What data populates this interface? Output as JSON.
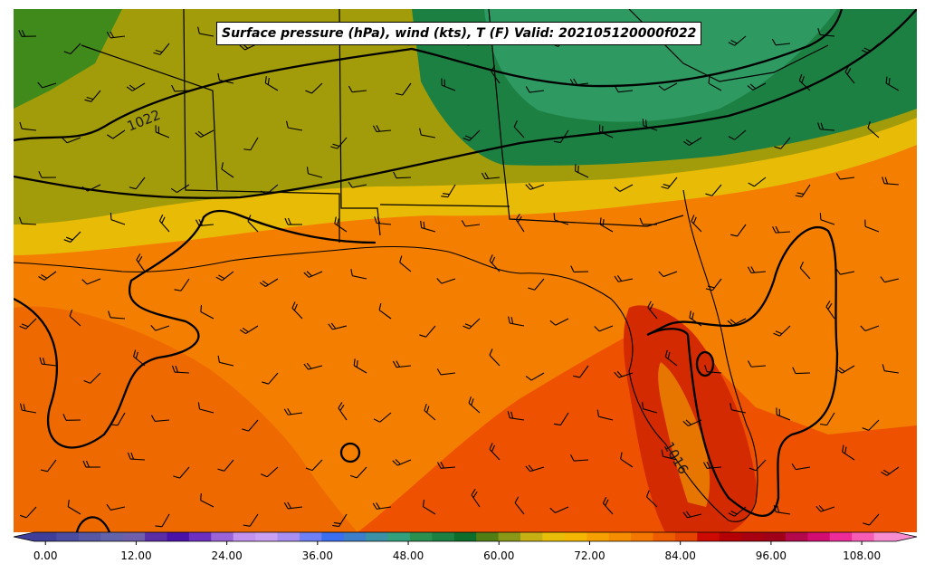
{
  "title": "Surface pressure (hPa), wind (kts), T (F) Valid: 202105120000f022",
  "isobar_labels": [
    "1022",
    "1016"
  ],
  "colorbar": {
    "min": 0,
    "max": 114,
    "step": 3,
    "tick_labels": [
      "0.00",
      "12.00",
      "24.00",
      "36.00",
      "48.00",
      "60.00",
      "72.00",
      "84.00",
      "96.00",
      "108.00"
    ],
    "colors": [
      "#3f3f9a",
      "#4b4b9f",
      "#5757a4",
      "#6363a9",
      "#6f5faa",
      "#5b2ea8",
      "#4a12a8",
      "#6c2fc0",
      "#9a64d8",
      "#c292ee",
      "#c9a0f2",
      "#a98ff2",
      "#6f7ff4",
      "#3c6ef0",
      "#3d7ec8",
      "#3a90a4",
      "#32a07c",
      "#2a9050",
      "#1c8042",
      "#0c6e2a",
      "#507e14",
      "#8a9818",
      "#c6b014",
      "#e8be08",
      "#f4b600",
      "#f6a000",
      "#f68c00",
      "#f47800",
      "#ee5c00",
      "#e44400",
      "#cc0a02",
      "#b40004",
      "#a80010",
      "#a00018",
      "#b4084c",
      "#d20c70",
      "#ec2c98",
      "#f65cb4",
      "#f88cd0"
    ]
  }
}
